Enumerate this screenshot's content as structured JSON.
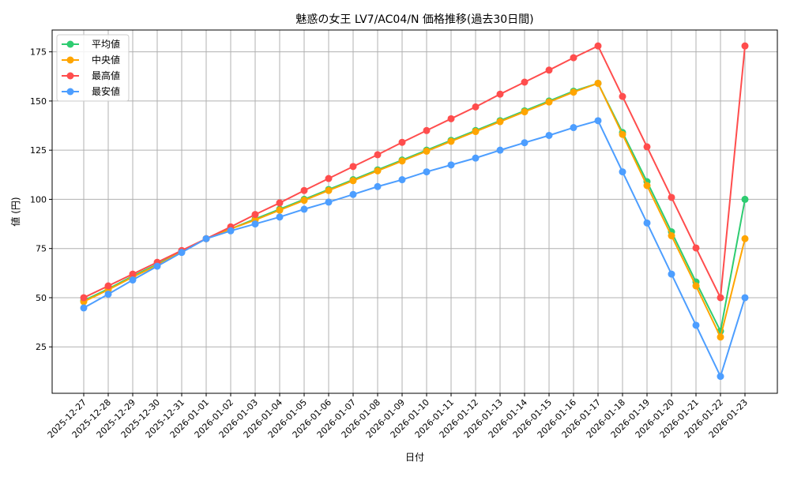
{
  "chart_data": {
    "type": "line",
    "title": "魅惑の女王 LV7/AC04/N 価格推移(過去30日間)",
    "xlabel": "日付",
    "ylabel": "値 (円)",
    "ylim": [
      1.4,
      186.1
    ],
    "yticks": [
      25,
      50,
      75,
      100,
      125,
      150,
      175
    ],
    "grid": true,
    "legend_placement": "top-left",
    "x": [
      "2025-12-27",
      "2025-12-28",
      "2025-12-29",
      "2025-12-30",
      "2025-12-31",
      "2026-01-01",
      "2026-01-02",
      "2026-01-03",
      "2026-01-04",
      "2026-01-05",
      "2026-01-06",
      "2026-01-07",
      "2026-01-08",
      "2026-01-09",
      "2026-01-10",
      "2026-01-11",
      "2026-01-12",
      "2026-01-13",
      "2026-01-14",
      "2026-01-15",
      "2026-01-16",
      "2026-01-17",
      "2026-01-18",
      "2026-01-19",
      "2026-01-20",
      "2026-01-21",
      "2026-01-22",
      "2026-01-23"
    ],
    "series": [
      {
        "name": "平均値",
        "color": "#2ecc71",
        "values": [
          48.5,
          54.5,
          61,
          67,
          73.5,
          80,
          85,
          90,
          95,
          100,
          105,
          110,
          115,
          120,
          125,
          130,
          135,
          140,
          145,
          150,
          155,
          159,
          134,
          109,
          83.5,
          58,
          33,
          100
        ]
      },
      {
        "name": "中央値",
        "color": "#ffa500",
        "values": [
          48,
          54,
          60.5,
          66.5,
          73.5,
          80,
          85,
          89.5,
          94.5,
          99.5,
          104.5,
          109.5,
          114.5,
          119.5,
          124.5,
          129.5,
          134.5,
          139.5,
          144.5,
          149.5,
          154.5,
          159,
          133,
          107,
          81.5,
          56,
          30,
          80
        ]
      },
      {
        "name": "最高値",
        "color": "#ff4d4d",
        "values": [
          50,
          56,
          62,
          68,
          74,
          80,
          86,
          92.3,
          98.2,
          104.5,
          110.6,
          116.7,
          122.7,
          129,
          135,
          141,
          147,
          153.5,
          159.6,
          165.7,
          172,
          178,
          152.3,
          126.7,
          101,
          75.3,
          50,
          178
        ]
      },
      {
        "name": "最安値",
        "color": "#4d9eff",
        "values": [
          44.8,
          51.8,
          59,
          66,
          73,
          80,
          84,
          87.5,
          91,
          95,
          98.6,
          102.5,
          106.5,
          110,
          114,
          117.5,
          121,
          125,
          128.8,
          132.5,
          136.5,
          140,
          114,
          88,
          62,
          36,
          10,
          50
        ]
      }
    ]
  }
}
